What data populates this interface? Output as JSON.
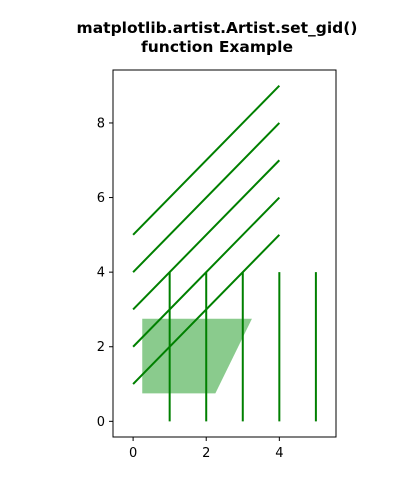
{
  "chart_data": {
    "type": "line",
    "title": "matplotlib.artist.Artist.set_gid()\nfunction Example",
    "xlim": [
      -0.55,
      5.55
    ],
    "ylim": [
      -0.42,
      9.42
    ],
    "xticks": [
      0,
      2,
      4
    ],
    "yticks": [
      0,
      2,
      4,
      6,
      8
    ],
    "grid": false,
    "colors": {
      "lines": "#008000",
      "fill": "#4caf50",
      "frame": "#000000",
      "text": "#000000"
    },
    "series": [
      {
        "x": [
          0,
          4
        ],
        "y": [
          1,
          5
        ]
      },
      {
        "x": [
          0,
          4
        ],
        "y": [
          2,
          6
        ]
      },
      {
        "x": [
          0,
          4
        ],
        "y": [
          3,
          7
        ]
      },
      {
        "x": [
          0,
          4
        ],
        "y": [
          4,
          8
        ]
      },
      {
        "x": [
          0,
          4
        ],
        "y": [
          5,
          9
        ]
      },
      {
        "x": [
          1,
          1
        ],
        "y": [
          0,
          4
        ]
      },
      {
        "x": [
          2,
          2
        ],
        "y": [
          0,
          4
        ]
      },
      {
        "x": [
          3,
          3
        ],
        "y": [
          0,
          4
        ]
      },
      {
        "x": [
          4,
          4
        ],
        "y": [
          0,
          4
        ]
      },
      {
        "x": [
          5,
          5
        ],
        "y": [
          0,
          4
        ]
      }
    ],
    "polygon": {
      "points": [
        [
          0.25,
          0.75
        ],
        [
          2.25,
          0.75
        ],
        [
          3.25,
          2.75
        ],
        [
          0.25,
          2.75
        ]
      ],
      "alpha": 0.65
    }
  }
}
